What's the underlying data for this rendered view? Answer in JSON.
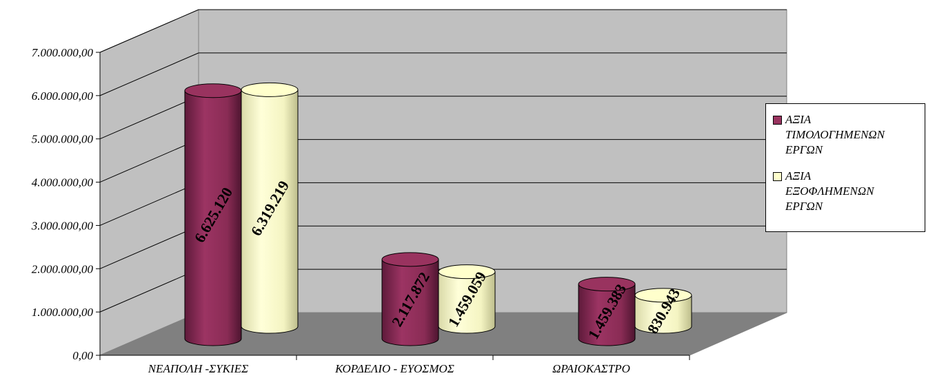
{
  "chart_data": {
    "type": "bar",
    "style": "3d-cylinder",
    "categories": [
      "ΝΕΑΠΟΛΗ -ΣΥΚΙΕΣ",
      "ΚΟΡΔΕΛΙΟ - ΕΥΟΣΜΟΣ",
      "ΩΡΑΙΟΚΑΣΤΡΟ"
    ],
    "series": [
      {
        "name": "ΑΞΙΑ ΤΙΜΟΛΟΓΗΜΕΝΩΝ ΕΡΓΩΝ",
        "values": [
          6625120,
          2117872,
          1459383
        ],
        "labels": [
          "6.625.120",
          "2.117.872",
          "1.459.383"
        ],
        "color": "#99335f"
      },
      {
        "name": "ΑΞΙΑ ΕΞΟΦΛΗΜΕΝΩΝ ΕΡΓΩΝ",
        "values": [
          6319219,
          1459059,
          830943
        ],
        "labels": [
          "6.319.219",
          "1.459.059",
          "830.943"
        ],
        "color": "#ffffcc"
      }
    ],
    "yticks": [
      "0,00",
      "1.000.000,00",
      "2.000.000,00",
      "3.000.000,00",
      "4.000.000,00",
      "5.000.000,00",
      "6.000.000,00",
      "7.000.000,00"
    ],
    "ylim": [
      0,
      7000000
    ],
    "grid": true,
    "legend_position": "right",
    "wall_color": "#c0c0c0",
    "floor_color": "#808080"
  },
  "legend": {
    "items": [
      {
        "label": "ΑΞΙΑ\nΤΙΜΟΛΟΓΗΜΕΝΩΝ\nΕΡΓΩΝ",
        "color": "#99335f"
      },
      {
        "label": "ΑΞΙΑ\nΕΞΟΦΛΗΜΕΝΩΝ\nΕΡΓΩΝ",
        "color": "#ffffcc"
      }
    ]
  }
}
